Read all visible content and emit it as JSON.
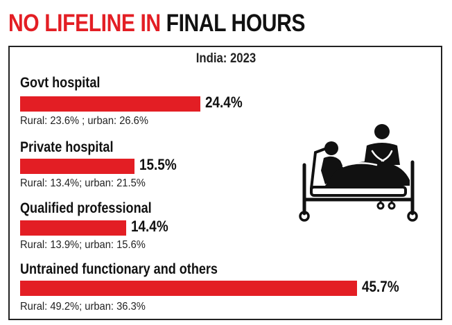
{
  "headline": {
    "part1": "NO LIFELINE IN",
    "part2": "FINAL HOURS"
  },
  "colors": {
    "bar": "#e31e24",
    "headline_accent": "#e31e24"
  },
  "illustration": {
    "icon": "patient-in-bed-with-caregiver-icon"
  },
  "chart_data": {
    "type": "bar",
    "orientation": "horizontal",
    "title": "India: 2023",
    "xlim": [
      0,
      50
    ],
    "series_unit": "%",
    "categories": [
      "Govt hospital",
      "Private hospital",
      "Qualified professional",
      "Untrained functionary and others"
    ],
    "values": [
      24.4,
      15.5,
      14.4,
      45.7
    ],
    "value_labels": [
      "24.4%",
      "15.5%",
      "14.4%",
      "45.7%"
    ],
    "breakdown": [
      {
        "rural": 23.6,
        "urban": 26.6
      },
      {
        "rural": 13.4,
        "urban": 21.5
      },
      {
        "rural": 13.9,
        "urban": 15.6
      },
      {
        "rural": 49.2,
        "urban": 36.3
      }
    ],
    "notes": [
      "Rural: 23.6% ; urban: 26.6%",
      "Rural: 13.4%; urban: 21.5%",
      "Rural: 13.9%; urban: 15.6%",
      "Rural: 49.2%; urban: 36.3%"
    ]
  }
}
